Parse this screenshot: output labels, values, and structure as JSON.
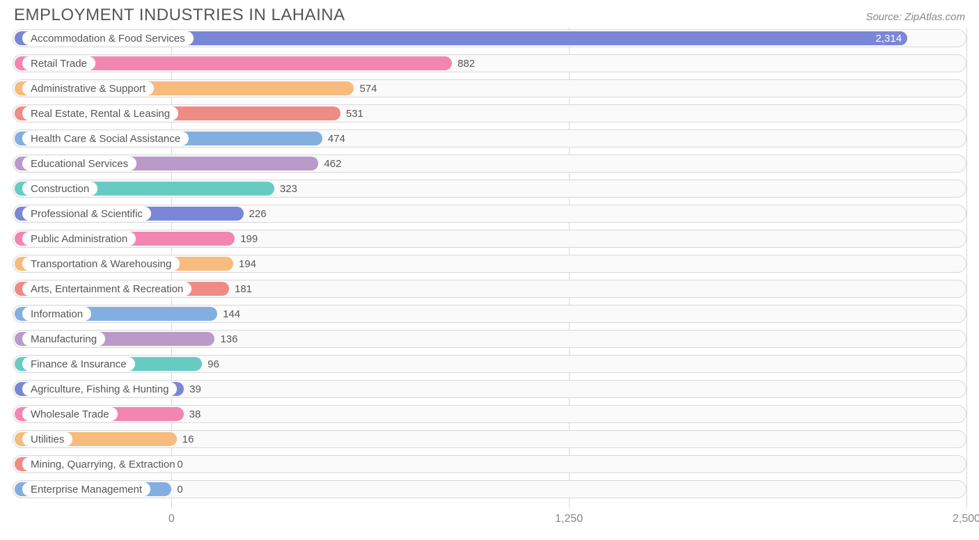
{
  "title": "EMPLOYMENT INDUSTRIES IN LAHAINA",
  "source": "Source: ZipAtlas.com",
  "chart": {
    "type": "bar-horizontal",
    "xmin": -500,
    "xmax": 2500,
    "xticks": [
      0,
      1250,
      2500
    ],
    "xtick_labels": [
      "0",
      "1,250",
      "2,500"
    ],
    "grid_color": "#d8d8d8",
    "track_border": "#d8d8d8",
    "track_bg": "#fafafa",
    "background_color": "#ffffff",
    "label_fontsize": 15,
    "tick_fontsize": 16,
    "label_color": "#555555",
    "tick_color": "#888888",
    "palette": [
      "#7a87d6",
      "#f386b0",
      "#f7bb7d",
      "#ee8b85",
      "#83aee0",
      "#b99ac9",
      "#68cbc3"
    ],
    "bars": [
      {
        "label": "Accommodation & Food Services",
        "value": 2314,
        "display": "2,314",
        "color": "#7a87d6",
        "label_inside_bar": true
      },
      {
        "label": "Retail Trade",
        "value": 882,
        "display": "882",
        "color": "#f386b0",
        "label_inside_bar": false
      },
      {
        "label": "Administrative & Support",
        "value": 574,
        "display": "574",
        "color": "#f7bb7d",
        "label_inside_bar": false
      },
      {
        "label": "Real Estate, Rental & Leasing",
        "value": 531,
        "display": "531",
        "color": "#ee8b85",
        "label_inside_bar": false
      },
      {
        "label": "Health Care & Social Assistance",
        "value": 474,
        "display": "474",
        "color": "#83aee0",
        "label_inside_bar": false
      },
      {
        "label": "Educational Services",
        "value": 462,
        "display": "462",
        "color": "#b99ac9",
        "label_inside_bar": false
      },
      {
        "label": "Construction",
        "value": 323,
        "display": "323",
        "color": "#68cbc3",
        "label_inside_bar": false
      },
      {
        "label": "Professional & Scientific",
        "value": 226,
        "display": "226",
        "color": "#7a87d6",
        "label_inside_bar": false
      },
      {
        "label": "Public Administration",
        "value": 199,
        "display": "199",
        "color": "#f386b0",
        "label_inside_bar": false
      },
      {
        "label": "Transportation & Warehousing",
        "value": 194,
        "display": "194",
        "color": "#f7bb7d",
        "label_inside_bar": false
      },
      {
        "label": "Arts, Entertainment & Recreation",
        "value": 181,
        "display": "181",
        "color": "#ee8b85",
        "label_inside_bar": false
      },
      {
        "label": "Information",
        "value": 144,
        "display": "144",
        "color": "#83aee0",
        "label_inside_bar": false
      },
      {
        "label": "Manufacturing",
        "value": 136,
        "display": "136",
        "color": "#b99ac9",
        "label_inside_bar": false
      },
      {
        "label": "Finance & Insurance",
        "value": 96,
        "display": "96",
        "color": "#68cbc3",
        "label_inside_bar": false
      },
      {
        "label": "Agriculture, Fishing & Hunting",
        "value": 39,
        "display": "39",
        "color": "#7a87d6",
        "label_inside_bar": false
      },
      {
        "label": "Wholesale Trade",
        "value": 38,
        "display": "38",
        "color": "#f386b0",
        "label_inside_bar": false
      },
      {
        "label": "Utilities",
        "value": 16,
        "display": "16",
        "color": "#f7bb7d",
        "label_inside_bar": false
      },
      {
        "label": "Mining, Quarrying, & Extraction",
        "value": 0,
        "display": "0",
        "color": "#ee8b85",
        "label_inside_bar": false
      },
      {
        "label": "Enterprise Management",
        "value": 0,
        "display": "0",
        "color": "#83aee0",
        "label_inside_bar": false
      }
    ]
  }
}
